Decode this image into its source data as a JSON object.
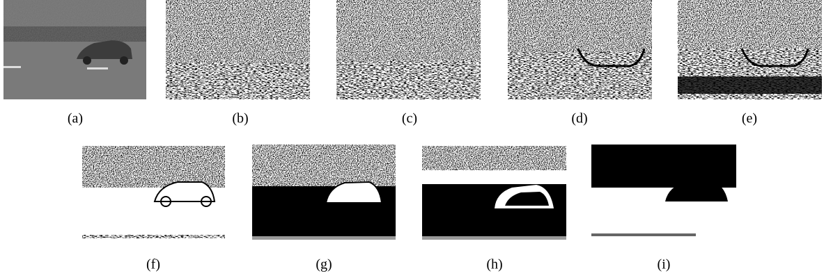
{
  "figure": {
    "captions": [
      "(a)",
      "(b)",
      "(c)",
      "(d)",
      "(e)",
      "(f)",
      "(g)",
      "(h)",
      "(i)"
    ]
  }
}
